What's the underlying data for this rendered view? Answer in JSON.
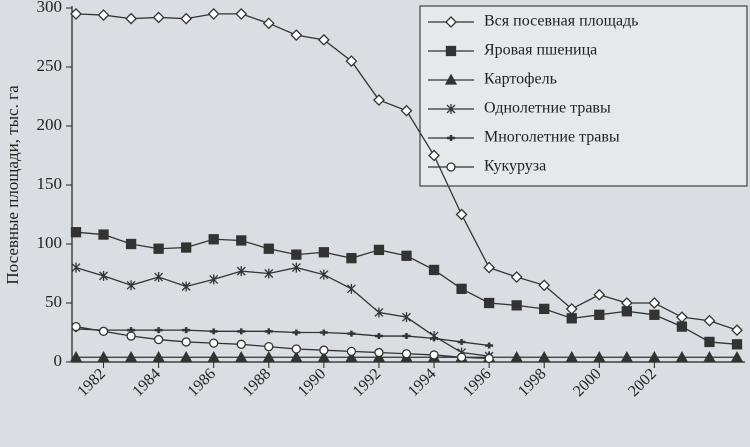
{
  "chart_data": {
    "type": "line",
    "y_label": "Посевные площади, тыс. га",
    "x": [
      1981,
      1982,
      1983,
      1984,
      1985,
      1986,
      1987,
      1988,
      1989,
      1990,
      1991,
      1992,
      1993,
      1994,
      1995,
      1996,
      1997,
      1998,
      1999,
      2000,
      2001,
      2002,
      2003,
      2004,
      2005
    ],
    "xlim": [
      1981,
      2005
    ],
    "xticks": [
      1982,
      1984,
      1986,
      1988,
      1990,
      1992,
      1994,
      1996,
      1998,
      2000,
      2002
    ],
    "ylim": [
      0,
      300
    ],
    "yticks": [
      0,
      50,
      100,
      150,
      200,
      250,
      300
    ],
    "series": [
      {
        "name": "Вся посевная площадь",
        "color": "#333",
        "marker": "diamond",
        "values": [
          295,
          294,
          291,
          292,
          291,
          295,
          295,
          287,
          277,
          273,
          255,
          222,
          213,
          175,
          125,
          80,
          72,
          65,
          45,
          57,
          50,
          50,
          38,
          35,
          27
        ]
      },
      {
        "name": "Яровая пшеница",
        "color": "#333",
        "marker": "square",
        "values": [
          110,
          108,
          100,
          96,
          97,
          104,
          103,
          96,
          91,
          93,
          88,
          95,
          90,
          78,
          62,
          50,
          48,
          45,
          37,
          40,
          43,
          40,
          30,
          17,
          15
        ]
      },
      {
        "name": "Картофель",
        "color": "#333",
        "marker": "triangle",
        "values": [
          4,
          4,
          4,
          4,
          4,
          4,
          4,
          4,
          4,
          4,
          4,
          4,
          4,
          4,
          4,
          4,
          4,
          4,
          4,
          4,
          4,
          4,
          4,
          4,
          4
        ]
      },
      {
        "name": "Однолетние травы",
        "color": "#333",
        "marker": "cross",
        "values": [
          80,
          73,
          65,
          72,
          64,
          70,
          77,
          75,
          80,
          74,
          62,
          42,
          38,
          22,
          8,
          5,
          null,
          null,
          null,
          null,
          null,
          null,
          null,
          null,
          null
        ]
      },
      {
        "name": "Многолетние травы",
        "color": "#333",
        "marker": "dash",
        "values": [
          28,
          27,
          27,
          27,
          27,
          26,
          26,
          26,
          25,
          25,
          24,
          22,
          22,
          20,
          17,
          14,
          null,
          null,
          null,
          null,
          null,
          null,
          null,
          null,
          null
        ]
      },
      {
        "name": "Кукуруза",
        "color": "#333",
        "marker": "circle",
        "values": [
          30,
          26,
          22,
          19,
          17,
          16,
          15,
          13,
          11,
          10,
          9,
          8,
          7,
          6,
          4,
          3,
          null,
          null,
          null,
          null,
          null,
          null,
          null,
          null,
          null
        ]
      }
    ]
  }
}
